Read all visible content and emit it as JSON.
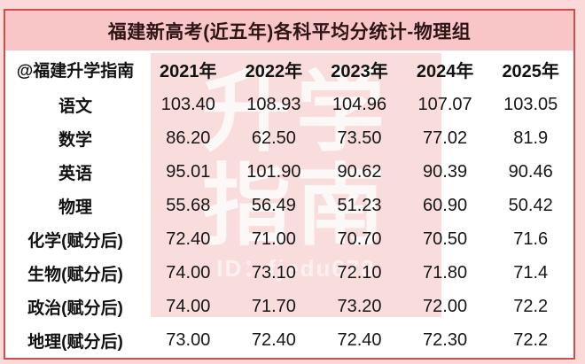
{
  "colors": {
    "page-bg": "#fbd9d9",
    "frame-border": "#c9504f",
    "band-bg": "#f8c6c6",
    "title-ink": "#2e1414",
    "wm-pink": "#f6c8c8"
  },
  "title": "福建新高考(近五年)各科平均分统计-物理组",
  "table": {
    "header": [
      "@福建升学指南",
      "2021年",
      "2022年",
      "2023年",
      "2024年",
      "2025年"
    ],
    "rows": [
      {
        "label": "语文",
        "values": [
          "103.40",
          "108.93",
          "104.96",
          "107.07",
          "103.05"
        ]
      },
      {
        "label": "数学",
        "values": [
          "86.20",
          "62.50",
          "73.50",
          "77.02",
          "81.9"
        ]
      },
      {
        "label": "英语",
        "values": [
          "95.01",
          "101.90",
          "90.62",
          "90.39",
          "90.46"
        ]
      },
      {
        "label": "物理",
        "values": [
          "55.68",
          "56.49",
          "51.23",
          "60.90",
          "50.42"
        ]
      },
      {
        "label": "化学(赋分后)",
        "values": [
          "72.40",
          "71.00",
          "70.70",
          "70.50",
          "71.6"
        ]
      },
      {
        "label": "生物(赋分后)",
        "values": [
          "74.00",
          "73.10",
          "72.10",
          "71.80",
          "71.4"
        ]
      },
      {
        "label": "政治(赋分后)",
        "values": [
          "74.00",
          "71.70",
          "73.20",
          "72.00",
          "72.2"
        ]
      },
      {
        "label": "地理(赋分后)",
        "values": [
          "73.00",
          "72.40",
          "72.40",
          "72.30",
          "72.2"
        ]
      }
    ]
  },
  "watermark": {
    "line1": "升学",
    "line2": "指南",
    "id": "ID：fjedu678"
  },
  "chart_data": {
    "type": "table",
    "title": "福建新高考(近五年)各科平均分统计-物理组",
    "source_account": "@福建升学指南",
    "columns": [
      "2021年",
      "2022年",
      "2023年",
      "2024年",
      "2025年"
    ],
    "row_labels": [
      "语文",
      "数学",
      "英语",
      "物理",
      "化学(赋分后)",
      "生物(赋分后)",
      "政治(赋分后)",
      "地理(赋分后)"
    ],
    "series": [
      {
        "name": "2021年",
        "values": [
          103.4,
          86.2,
          95.01,
          55.68,
          72.4,
          74.0,
          74.0,
          73.0
        ]
      },
      {
        "name": "2022年",
        "values": [
          108.93,
          62.5,
          101.9,
          56.49,
          71.0,
          73.1,
          71.7,
          72.4
        ]
      },
      {
        "name": "2023年",
        "values": [
          104.96,
          73.5,
          90.62,
          51.23,
          70.7,
          72.1,
          73.2,
          72.4
        ]
      },
      {
        "name": "2024年",
        "values": [
          107.07,
          77.02,
          90.39,
          60.9,
          70.5,
          71.8,
          72.0,
          72.3
        ]
      },
      {
        "name": "2025年",
        "values": [
          103.05,
          81.9,
          90.46,
          50.42,
          71.6,
          71.4,
          72.2,
          72.2
        ]
      }
    ]
  }
}
